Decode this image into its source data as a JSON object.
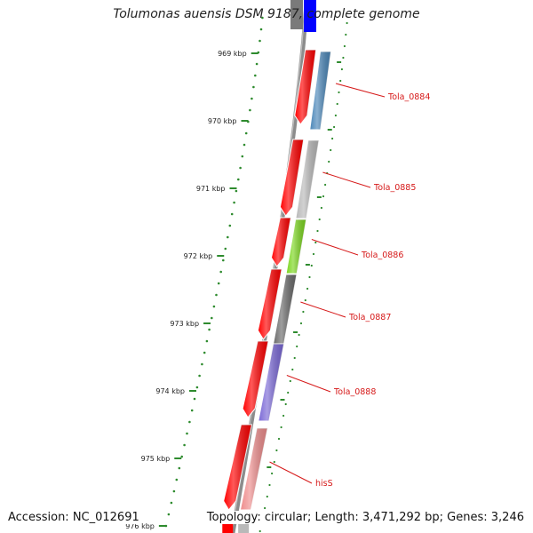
{
  "title": "Tolumonas auensis DSM 9187, complete genome",
  "footer": {
    "accession": "Accession: NC_012691",
    "summary": "Topology: circular; Length: 3,471,292 bp; Genes: 3,246"
  },
  "scale": {
    "ticks": [
      "969 kbp",
      "970 kbp",
      "971 kbp",
      "972 kbp",
      "973 kbp",
      "974 kbp",
      "975 kbp",
      "976 kbp"
    ]
  },
  "genes": [
    {
      "name": "Tola_0884",
      "color": "#4a86b8"
    },
    {
      "name": "Tola_0885",
      "color": "#b9b9b9"
    },
    {
      "name": "Tola_0886",
      "color": "#7bd61e"
    },
    {
      "name": "Tola_0887",
      "color": "#6a6a6a"
    },
    {
      "name": "Tola_0888",
      "color": "#7a68d6"
    },
    {
      "name": "hisS",
      "color": "#ee8c8c"
    }
  ],
  "colors": {
    "cds_forward": "#ff0000",
    "backbone": "#8c8c8c",
    "tick": "#2e8b2e",
    "label": "#d61a1a",
    "top_gene": "#0000ff"
  }
}
